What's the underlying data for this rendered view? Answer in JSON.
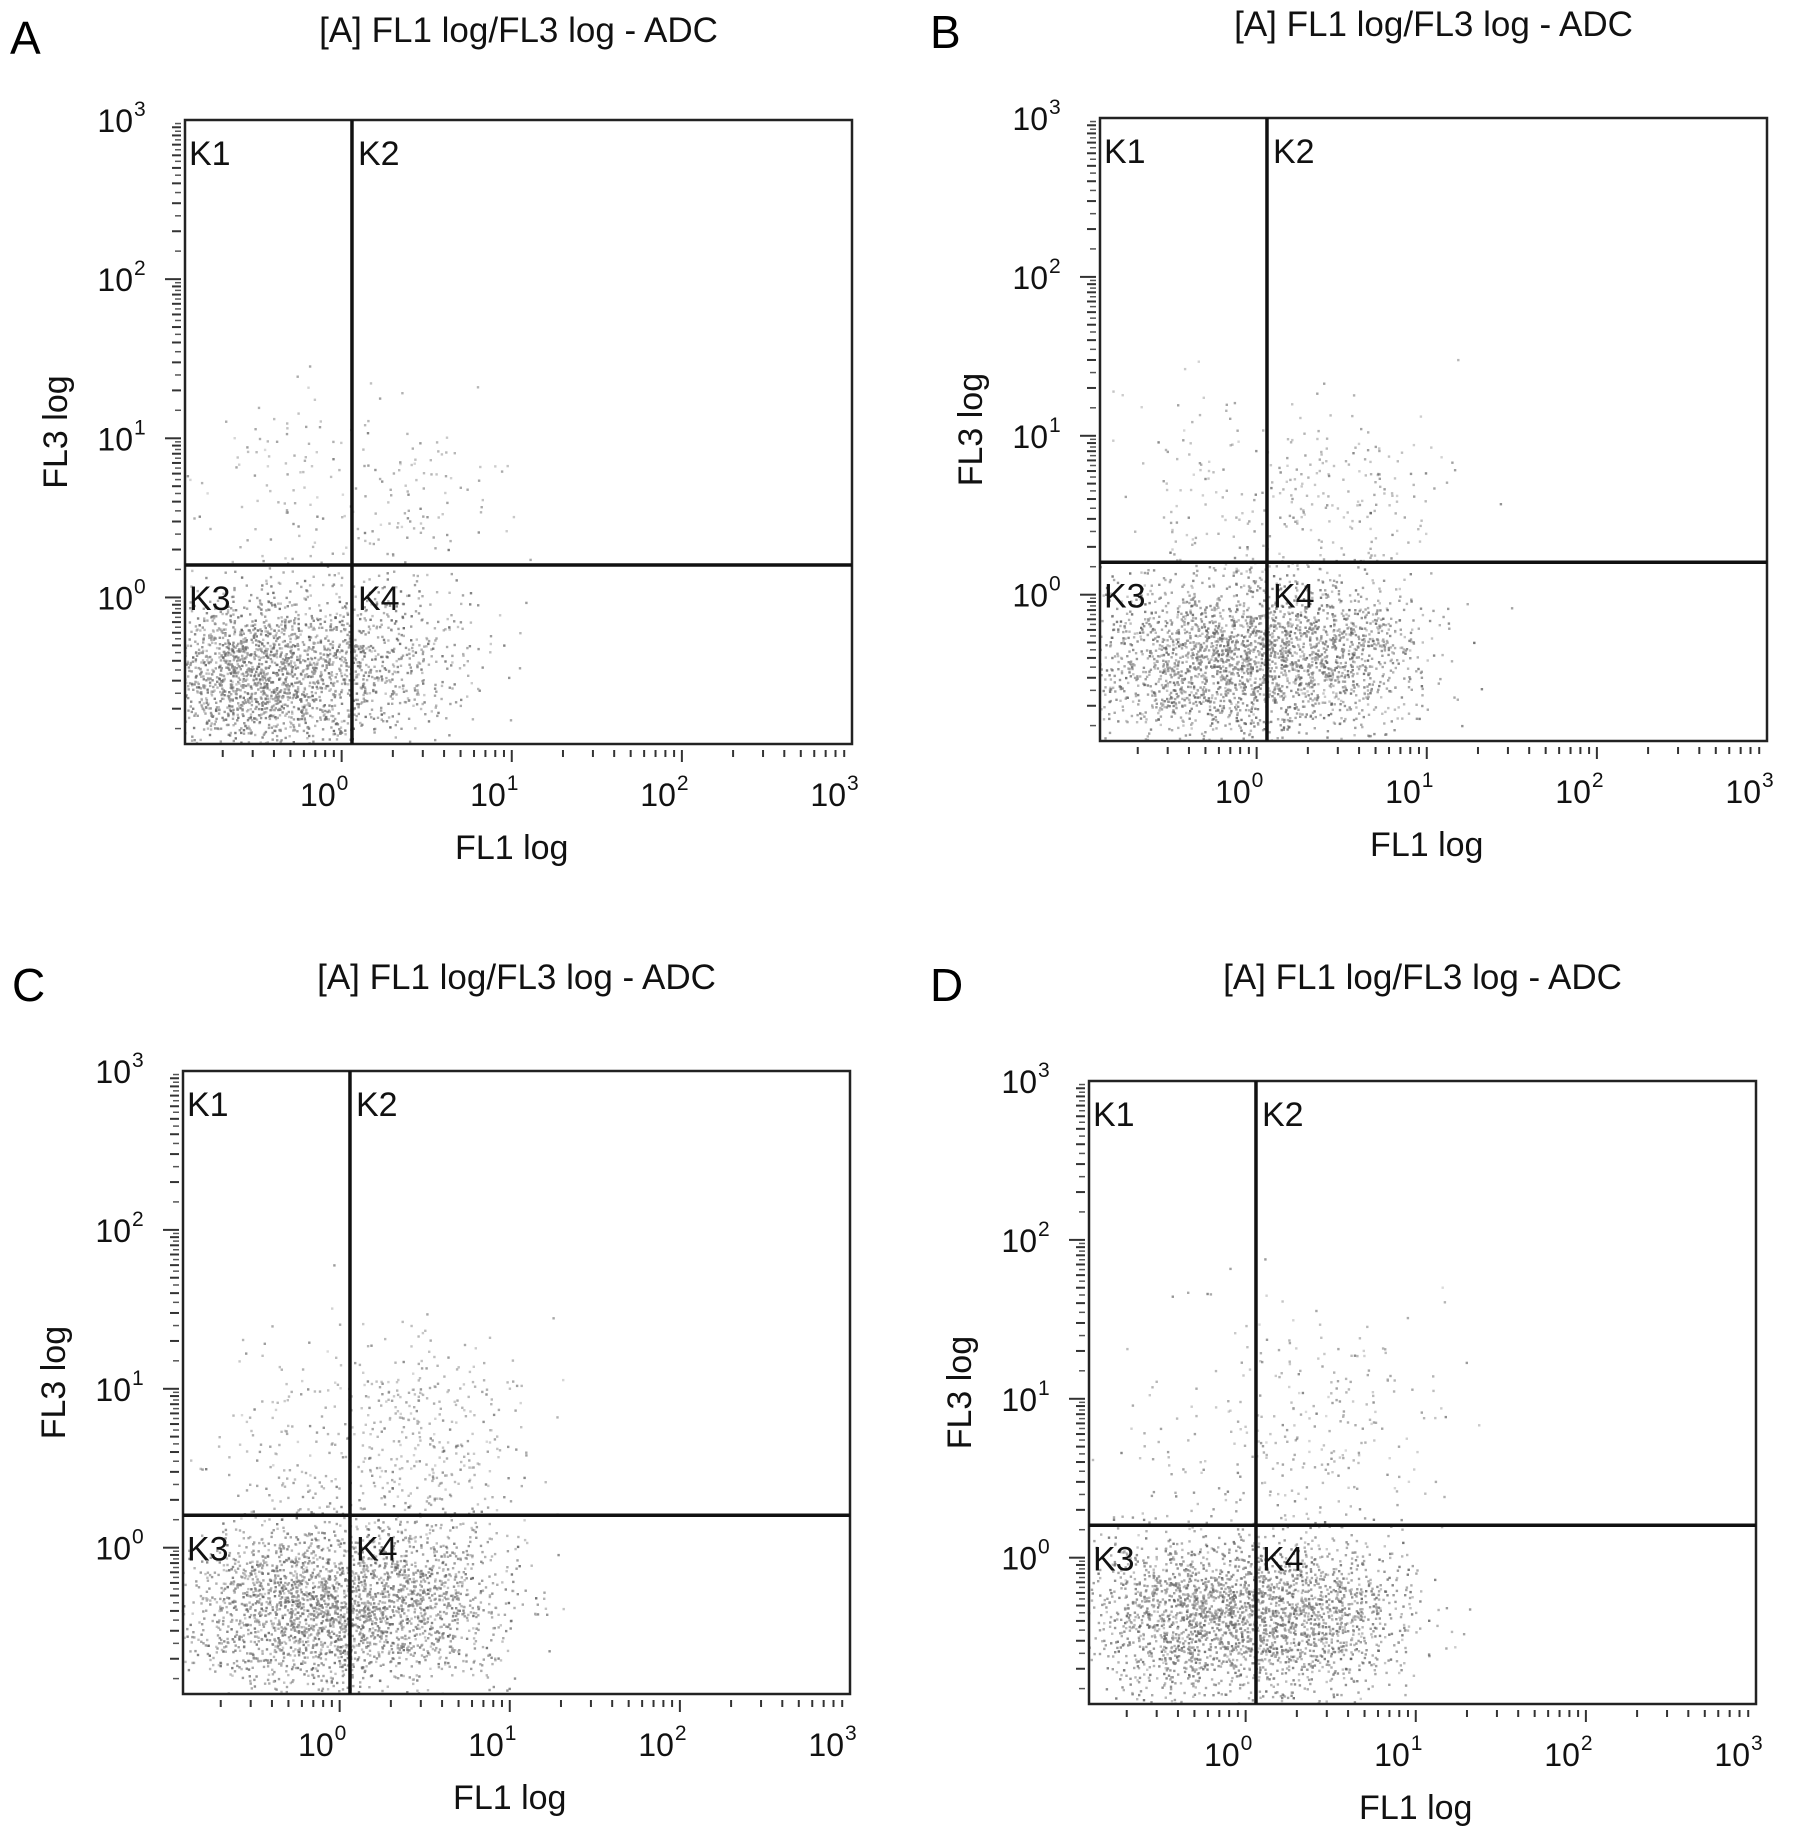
{
  "chart_data": [
    {
      "panel": "A",
      "type": "scatter",
      "title": "[A] FL1 log/FL3 log - ADC",
      "xlabel": "FL1 log",
      "ylabel": "FL3 log",
      "xscale": "log",
      "yscale": "log",
      "xlim": [
        0.12,
        1000
      ],
      "ylim": [
        0.12,
        1000
      ],
      "x_ticks": [
        {
          "base": "10",
          "exp": "0",
          "value": 1
        },
        {
          "base": "10",
          "exp": "1",
          "value": 10
        },
        {
          "base": "10",
          "exp": "2",
          "value": 100
        },
        {
          "base": "10",
          "exp": "3",
          "value": 1000
        }
      ],
      "y_ticks": [
        {
          "base": "10",
          "exp": "0",
          "value": 1
        },
        {
          "base": "10",
          "exp": "1",
          "value": 10
        },
        {
          "base": "10",
          "exp": "2",
          "value": 100
        },
        {
          "base": "10",
          "exp": "3",
          "value": 1000
        }
      ],
      "quadrant_gate": {
        "x": 1.15,
        "y": 1.6
      },
      "quadrants": [
        "K1",
        "K2",
        "K3",
        "K4"
      ],
      "populations": [
        {
          "cx": 0.32,
          "cy": 0.33,
          "sdx": 0.32,
          "sdy": 0.26,
          "n": 1800
        },
        {
          "cx": 1.7,
          "cy": 0.4,
          "sdx": 0.28,
          "sdy": 0.25,
          "n": 550
        },
        {
          "cx": 0.5,
          "cy": 5,
          "sdx": 0.35,
          "sdy": 0.35,
          "n": 90
        },
        {
          "cx": 2.6,
          "cy": 4.5,
          "sdx": 0.28,
          "sdy": 0.28,
          "n": 110
        }
      ],
      "grid": false,
      "legend": "none"
    },
    {
      "panel": "B",
      "type": "scatter",
      "title": "[A] FL1 log/FL3 log - ADC",
      "xlabel": "FL1 log",
      "ylabel": "FL3 log",
      "xscale": "log",
      "yscale": "log",
      "xlim": [
        0.12,
        1000
      ],
      "ylim": [
        0.12,
        1000
      ],
      "x_ticks": [
        {
          "base": "10",
          "exp": "0",
          "value": 1
        },
        {
          "base": "10",
          "exp": "1",
          "value": 10
        },
        {
          "base": "10",
          "exp": "2",
          "value": 100
        },
        {
          "base": "10",
          "exp": "3",
          "value": 1000
        }
      ],
      "y_ticks": [
        {
          "base": "10",
          "exp": "0",
          "value": 1
        },
        {
          "base": "10",
          "exp": "1",
          "value": 10
        },
        {
          "base": "10",
          "exp": "2",
          "value": 100
        },
        {
          "base": "10",
          "exp": "3",
          "value": 1000
        }
      ],
      "quadrant_gate": {
        "x": 1.15,
        "y": 1.6
      },
      "quadrants": [
        "K1",
        "K2",
        "K3",
        "K4"
      ],
      "populations": [
        {
          "cx": 0.55,
          "cy": 0.38,
          "sdx": 0.38,
          "sdy": 0.26,
          "n": 1800
        },
        {
          "cx": 2.8,
          "cy": 0.42,
          "sdx": 0.3,
          "sdy": 0.25,
          "n": 900
        },
        {
          "cx": 0.6,
          "cy": 5,
          "sdx": 0.35,
          "sdy": 0.35,
          "n": 100
        },
        {
          "cx": 3.2,
          "cy": 4,
          "sdx": 0.3,
          "sdy": 0.3,
          "n": 180
        }
      ],
      "grid": false,
      "legend": "none"
    },
    {
      "panel": "C",
      "type": "scatter",
      "title": "[A] FL1 log/FL3 log - ADC",
      "xlabel": "FL1 log",
      "ylabel": "FL3 log",
      "xscale": "log",
      "yscale": "log",
      "xlim": [
        0.12,
        1000
      ],
      "ylim": [
        0.12,
        1000
      ],
      "x_ticks": [
        {
          "base": "10",
          "exp": "0",
          "value": 1
        },
        {
          "base": "10",
          "exp": "1",
          "value": 10
        },
        {
          "base": "10",
          "exp": "2",
          "value": 100
        },
        {
          "base": "10",
          "exp": "3",
          "value": 1000
        }
      ],
      "y_ticks": [
        {
          "base": "10",
          "exp": "0",
          "value": 1
        },
        {
          "base": "10",
          "exp": "1",
          "value": 10
        },
        {
          "base": "10",
          "exp": "2",
          "value": 100
        },
        {
          "base": "10",
          "exp": "3",
          "value": 1000
        }
      ],
      "quadrant_gate": {
        "x": 1.15,
        "y": 1.6
      },
      "quadrants": [
        "K1",
        "K2",
        "K3",
        "K4"
      ],
      "populations": [
        {
          "cx": 0.55,
          "cy": 0.42,
          "sdx": 0.35,
          "sdy": 0.27,
          "n": 1700
        },
        {
          "cx": 2.7,
          "cy": 0.45,
          "sdx": 0.3,
          "sdy": 0.27,
          "n": 1100
        },
        {
          "cx": 0.6,
          "cy": 5,
          "sdx": 0.35,
          "sdy": 0.35,
          "n": 160
        },
        {
          "cx": 3.3,
          "cy": 5,
          "sdx": 0.3,
          "sdy": 0.33,
          "n": 340
        }
      ],
      "grid": false,
      "legend": "none"
    },
    {
      "panel": "D",
      "type": "scatter",
      "title": "[A] FL1 log/FL3 log - ADC",
      "xlabel": "FL1 log",
      "ylabel": "FL3 log",
      "xscale": "log",
      "yscale": "log",
      "xlim": [
        0.12,
        1000
      ],
      "ylim": [
        0.12,
        1000
      ],
      "x_ticks": [
        {
          "base": "10",
          "exp": "0",
          "value": 1
        },
        {
          "base": "10",
          "exp": "1",
          "value": 10
        },
        {
          "base": "10",
          "exp": "2",
          "value": 100
        },
        {
          "base": "10",
          "exp": "3",
          "value": 1000
        }
      ],
      "y_ticks": [
        {
          "base": "10",
          "exp": "0",
          "value": 1
        },
        {
          "base": "10",
          "exp": "1",
          "value": 10
        },
        {
          "base": "10",
          "exp": "2",
          "value": 100
        },
        {
          "base": "10",
          "exp": "3",
          "value": 1000
        }
      ],
      "quadrant_gate": {
        "x": 1.15,
        "y": 1.6
      },
      "quadrants": [
        "K1",
        "K2",
        "K3",
        "K4"
      ],
      "populations": [
        {
          "cx": 0.55,
          "cy": 0.42,
          "sdx": 0.33,
          "sdy": 0.25,
          "n": 1700
        },
        {
          "cx": 2.8,
          "cy": 0.42,
          "sdx": 0.28,
          "sdy": 0.25,
          "n": 1000
        },
        {
          "cx": 0.6,
          "cy": 6,
          "sdx": 0.38,
          "sdy": 0.4,
          "n": 90
        },
        {
          "cx": 3.5,
          "cy": 6,
          "sdx": 0.32,
          "sdy": 0.38,
          "n": 200
        }
      ],
      "grid": false,
      "legend": "none"
    }
  ]
}
